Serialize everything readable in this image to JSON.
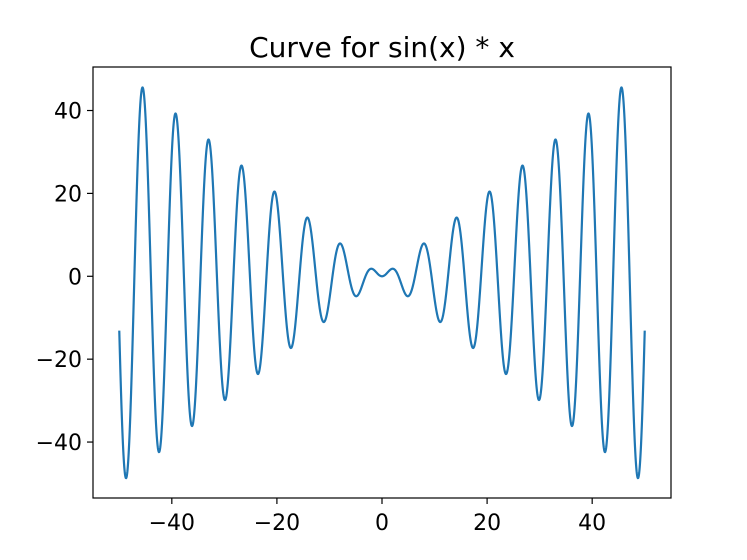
{
  "chart_data": {
    "type": "line",
    "title": "Curve for sin(x) * x",
    "xlabel": "",
    "ylabel": "",
    "function": "sin(x) * x",
    "x_range": [
      -50,
      50
    ],
    "xlim": [
      -55,
      55
    ],
    "ylim": [
      -53.5,
      50.5
    ],
    "x_ticks": [
      -40,
      -20,
      0,
      20,
      40
    ],
    "x_tick_labels": [
      "−40",
      "−20",
      "0",
      "20",
      "40"
    ],
    "y_ticks": [
      -40,
      -20,
      0,
      20,
      40
    ],
    "y_tick_labels": [
      "−40",
      "−20",
      "0",
      "20",
      "40"
    ],
    "grid": false,
    "legend": "none",
    "line_color": "#1f77b4",
    "sample_points": [
      {
        "x": -50,
        "y": -13.12
      },
      {
        "x": -48.7,
        "y": -48.7
      },
      {
        "x": -45.6,
        "y": 45.6
      },
      {
        "x": -42.4,
        "y": -42.4
      },
      {
        "x": -39.3,
        "y": 39.3
      },
      {
        "x": -36.1,
        "y": -36.1
      },
      {
        "x": -33.0,
        "y": 33.0
      },
      {
        "x": -29.9,
        "y": -29.9
      },
      {
        "x": -26.7,
        "y": 26.7
      },
      {
        "x": -23.6,
        "y": -23.6
      },
      {
        "x": -20.4,
        "y": 20.4
      },
      {
        "x": -17.3,
        "y": -17.3
      },
      {
        "x": -14.2,
        "y": 14.1
      },
      {
        "x": -11.1,
        "y": -11.0
      },
      {
        "x": -8.0,
        "y": 7.9
      },
      {
        "x": -4.9,
        "y": -4.8
      },
      {
        "x": -2.0,
        "y": 1.8
      },
      {
        "x": 0,
        "y": 0
      },
      {
        "x": 2.0,
        "y": 1.8
      },
      {
        "x": 4.9,
        "y": -4.8
      },
      {
        "x": 8.0,
        "y": 7.9
      },
      {
        "x": 11.1,
        "y": -11.0
      },
      {
        "x": 14.2,
        "y": 14.1
      },
      {
        "x": 17.3,
        "y": -17.3
      },
      {
        "x": 20.4,
        "y": 20.4
      },
      {
        "x": 23.6,
        "y": -23.6
      },
      {
        "x": 26.7,
        "y": 26.7
      },
      {
        "x": 29.9,
        "y": -29.9
      },
      {
        "x": 33.0,
        "y": 33.0
      },
      {
        "x": 36.1,
        "y": -36.1
      },
      {
        "x": 39.3,
        "y": 39.3
      },
      {
        "x": 42.4,
        "y": -42.4
      },
      {
        "x": 45.6,
        "y": 45.6
      },
      {
        "x": 48.7,
        "y": -48.7
      },
      {
        "x": 50,
        "y": -13.12
      }
    ]
  }
}
